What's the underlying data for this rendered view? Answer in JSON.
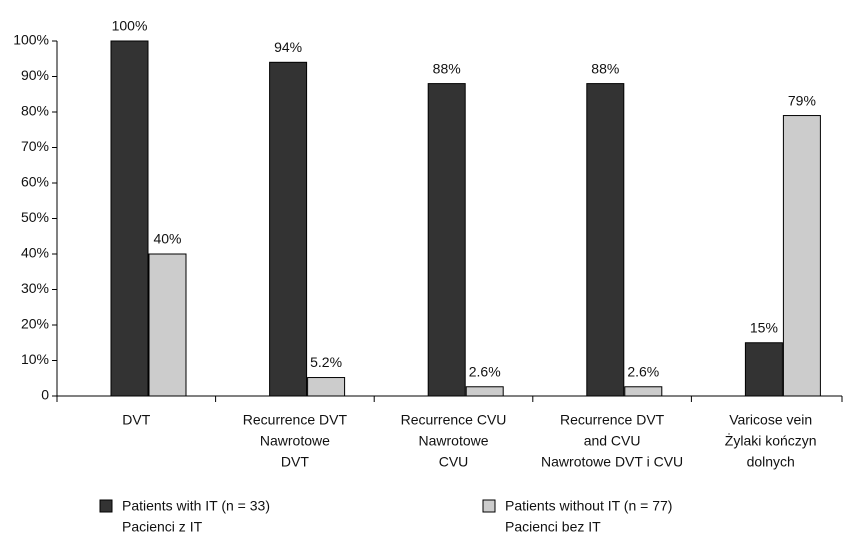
{
  "chart_data": {
    "type": "bar",
    "categories": [
      [
        "DVT"
      ],
      [
        "Recurrence DVT",
        "Nawrotowe",
        "DVT"
      ],
      [
        "Recurrence CVU",
        "Nawrotowe",
        "CVU"
      ],
      [
        "Recurrence DVT",
        "and CVU",
        "Nawrotowe DVT i CVU"
      ],
      [
        "Varicose vein",
        "Żylaki kończyn",
        "dolnych"
      ]
    ],
    "series": [
      {
        "name": [
          "Patients with IT (n = 33)",
          "Pacienci z IT"
        ],
        "color": "#333333",
        "values": [
          100,
          94,
          88,
          88,
          15
        ],
        "value_labels": [
          "100%",
          "94%",
          "88%",
          "88%",
          "15%"
        ]
      },
      {
        "name": [
          "Patients without IT (n = 77)",
          "Pacienci bez IT"
        ],
        "color": "#cccccc",
        "values": [
          40,
          5.2,
          2.6,
          2.6,
          79
        ],
        "value_labels": [
          "40%",
          "5.2%",
          "2.6%",
          "2.6%",
          "79%"
        ]
      }
    ],
    "ylim": [
      0,
      100
    ],
    "yticks": [
      0,
      {
        "value": 10,
        "label": "10%"
      },
      {
        "value": 20,
        "label": "20%"
      },
      {
        "value": 30,
        "label": "30%"
      },
      {
        "value": 40,
        "label": "40%"
      },
      {
        "value": 50,
        "label": "50%"
      },
      {
        "value": 60,
        "label": "60%"
      },
      {
        "value": 70,
        "label": "70%"
      },
      {
        "value": 80,
        "label": "80%"
      },
      {
        "value": 90,
        "label": "90%"
      },
      {
        "value": 100,
        "label": "100%"
      }
    ],
    "grid": false
  }
}
